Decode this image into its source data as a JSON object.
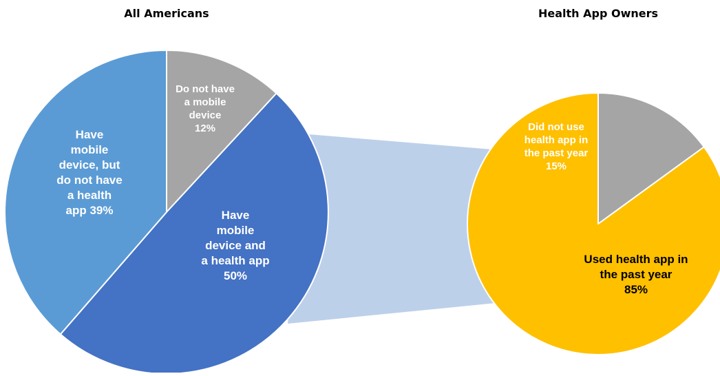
{
  "chart_data": [
    {
      "type": "pie",
      "title": "All Americans",
      "slices": [
        {
          "label": "Do not have a mobile device",
          "label_lines": [
            "Do not have",
            "a mobile",
            "device",
            "12%"
          ],
          "value": 12,
          "color": "#A5A5A5"
        },
        {
          "label": "Have mobile device and a health app",
          "label_lines": [
            "Have",
            "mobile",
            "device and",
            "a health app",
            "50%"
          ],
          "value": 50,
          "color": "#4472C4"
        },
        {
          "label": "Have mobile device, but do not have a health app",
          "label_lines": [
            "Have",
            "mobile",
            "device, but",
            "do not have",
            "a health",
            "app 39%"
          ],
          "value": 39,
          "color": "#5B9BD5"
        }
      ]
    },
    {
      "type": "pie",
      "title": "Health App Owners",
      "slices": [
        {
          "label": "Used health app in the past year",
          "label_lines": [
            "Used health app in",
            "the past year",
            "85%"
          ],
          "value": 85,
          "color": "#FFC000"
        },
        {
          "label": "Did not use health app in the past year",
          "label_lines": [
            "Did not use",
            "health app in",
            "the past year",
            "15%"
          ],
          "value": 15,
          "color": "#A5A5A5"
        }
      ]
    }
  ]
}
